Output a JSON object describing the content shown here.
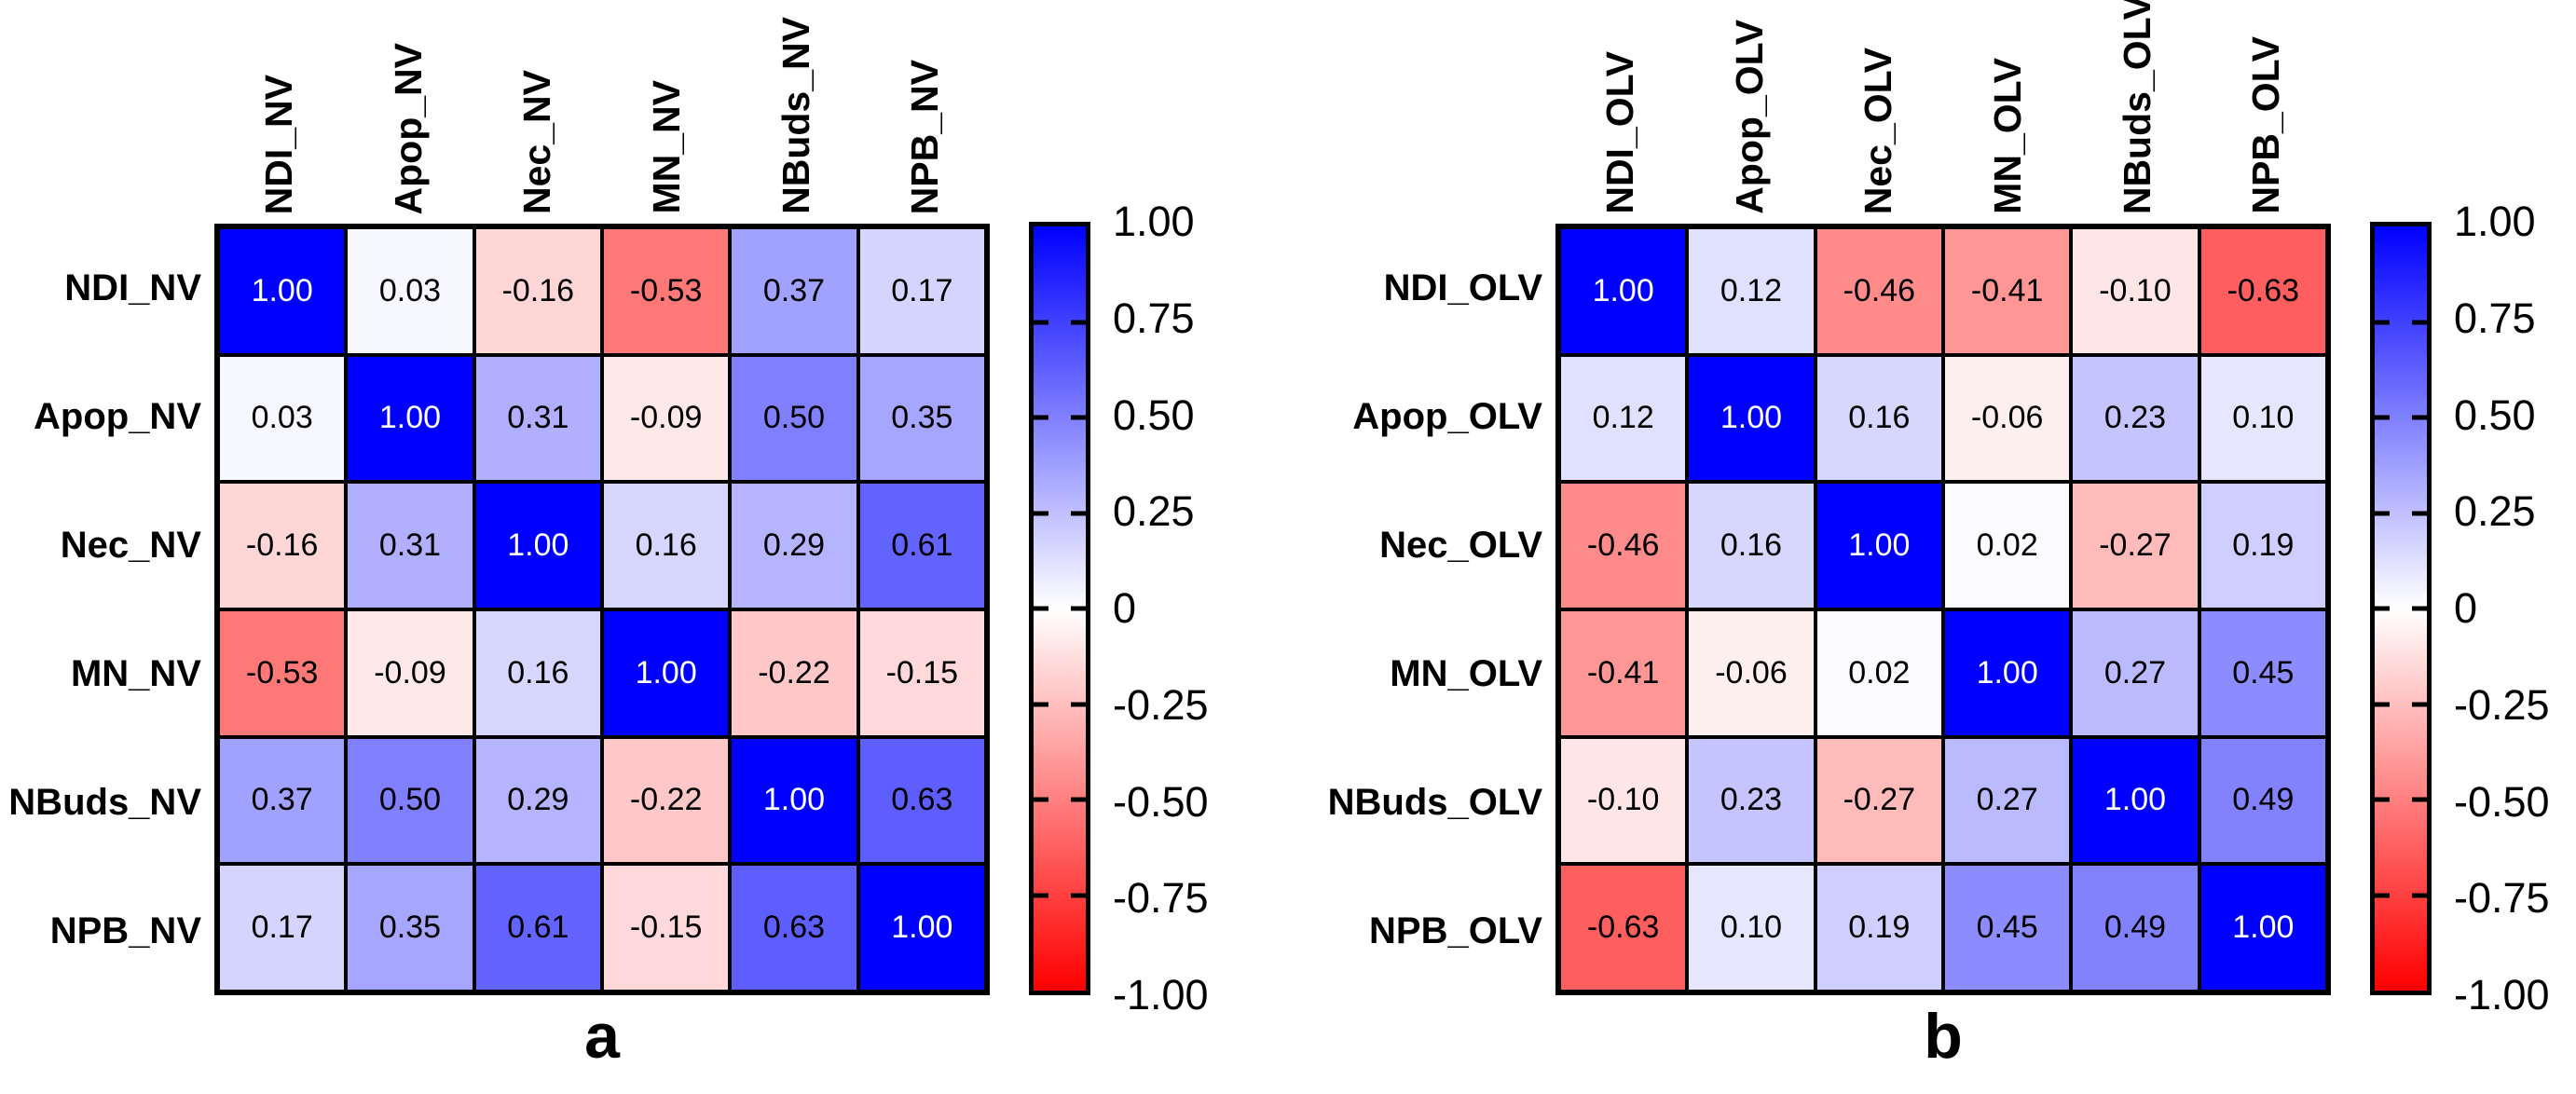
{
  "chart_data": [
    {
      "type": "heatmap",
      "panel_label": "a",
      "variables": [
        "NDI_NV",
        "Apop_NV",
        "Nec_NV",
        "MN_NV",
        "NBuds_NV",
        "NPB_NV"
      ],
      "matrix": [
        [
          1.0,
          0.03,
          -0.16,
          -0.53,
          0.37,
          0.17
        ],
        [
          0.03,
          1.0,
          0.31,
          -0.09,
          0.5,
          0.35
        ],
        [
          -0.16,
          0.31,
          1.0,
          0.16,
          0.29,
          0.61
        ],
        [
          -0.53,
          -0.09,
          0.16,
          1.0,
          -0.22,
          -0.15
        ],
        [
          0.37,
          0.5,
          0.29,
          -0.22,
          1.0,
          0.63
        ],
        [
          0.17,
          0.35,
          0.61,
          -0.15,
          0.63,
          1.0
        ]
      ],
      "value_range": [
        -1,
        1
      ],
      "colorbar": {
        "tick_labels": [
          "1.00",
          "0.75",
          "0.50",
          "0.25",
          "0",
          "-0.25",
          "-0.50",
          "-0.75",
          "-1.00"
        ],
        "top_color": "#0000ff",
        "mid_color": "#ffffff",
        "bottom_color": "#ff0000"
      }
    },
    {
      "type": "heatmap",
      "panel_label": "b",
      "variables": [
        "NDI_OLV",
        "Apop_OLV",
        "Nec_OLV",
        "MN_OLV",
        "NBuds_OLV",
        "NPB_OLV"
      ],
      "matrix": [
        [
          1.0,
          0.12,
          -0.46,
          -0.41,
          -0.1,
          -0.63
        ],
        [
          0.12,
          1.0,
          0.16,
          -0.06,
          0.23,
          0.1
        ],
        [
          -0.46,
          0.16,
          1.0,
          0.02,
          -0.27,
          0.19
        ],
        [
          -0.41,
          -0.06,
          0.02,
          1.0,
          0.27,
          0.45
        ],
        [
          -0.1,
          0.23,
          -0.27,
          0.27,
          1.0,
          0.49
        ],
        [
          -0.63,
          0.1,
          0.19,
          0.45,
          0.49,
          1.0
        ]
      ],
      "value_range": [
        -1,
        1
      ],
      "colorbar": {
        "tick_labels": [
          "1.00",
          "0.75",
          "0.50",
          "0.25",
          "0",
          "-0.25",
          "-0.50",
          "-0.75",
          "-1.00"
        ],
        "top_color": "#0000ff",
        "mid_color": "#ffffff",
        "bottom_color": "#ff0000"
      }
    }
  ]
}
